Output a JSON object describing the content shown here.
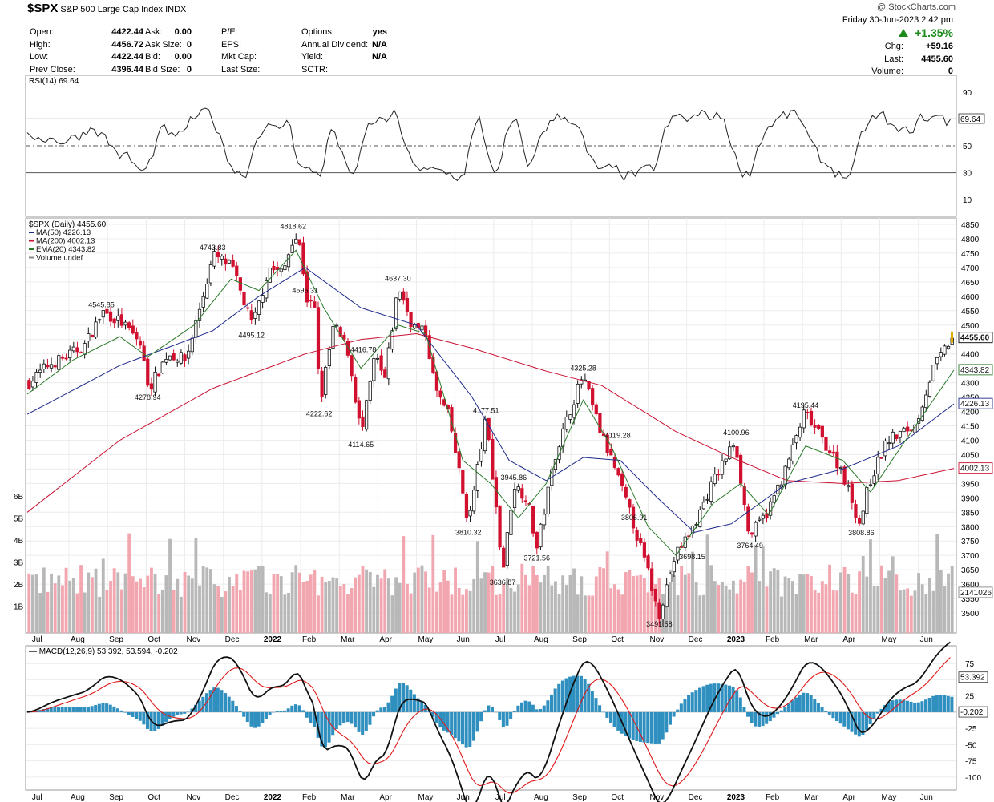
{
  "header": {
    "symbol": "$SPX",
    "name": "S&P 500 Large Cap Index",
    "exchange": "INDX",
    "copyright": "@ StockCharts.com",
    "date": "Friday  30-Jun-2023  2:42 pm",
    "change_pct": "+1.35%",
    "chg_label": "Chg:",
    "chg": "+59.16",
    "last_label": "Last:",
    "last": "4455.60",
    "volume_label": "Volume:",
    "volume": "0"
  },
  "quote": {
    "col1": [
      {
        "label": "Open:",
        "value": "4422.44"
      },
      {
        "label": "High:",
        "value": "4456.72"
      },
      {
        "label": "Low:",
        "value": "4422.44"
      },
      {
        "label": "Prev Close:",
        "value": "4396.44"
      }
    ],
    "col2": [
      {
        "label": "Ask:",
        "value": "0.00"
      },
      {
        "label": "Ask Size:",
        "value": "0"
      },
      {
        "label": "Bid:",
        "value": "0.00"
      },
      {
        "label": "Bid Size:",
        "value": "0"
      }
    ],
    "col3": [
      {
        "label": "P/E:",
        "value": ""
      },
      {
        "label": "EPS:",
        "value": ""
      },
      {
        "label": "Mkt Cap:",
        "value": ""
      },
      {
        "label": "Last Size:",
        "value": ""
      }
    ],
    "col4": [
      {
        "label": "Options:",
        "value": "yes"
      },
      {
        "label": "Annual Dividend:",
        "value": "N/A"
      },
      {
        "label": "Yield:",
        "value": "N/A"
      },
      {
        "label": "SCTR:",
        "value": ""
      }
    ]
  },
  "chart_data": [
    {
      "type": "line",
      "panel": "rsi",
      "title": "RSI(14) 69.64",
      "ylim": [
        0,
        100
      ],
      "ticks": [
        90,
        50,
        30,
        10
      ],
      "reference_lines": [
        70,
        50,
        30
      ],
      "last_value": "69.64"
    },
    {
      "type": "line",
      "panel": "price",
      "title": "$SPX (Daily) 4455.60",
      "legend": [
        {
          "name": "MA(50) 4226.13",
          "color": "#1f2a8c"
        },
        {
          "name": "MA(200) 4002.13",
          "color": "#cc1133"
        },
        {
          "name": "EMA(20) 4343.82",
          "color": "#2a7a2a"
        },
        {
          "name": "Volume undef",
          "color": "#888888"
        }
      ],
      "ylim": [
        3450,
        4850
      ],
      "ticks": [
        4850,
        4800,
        4750,
        4700,
        4650,
        4600,
        4550,
        4500,
        4450,
        4400,
        4350,
        4300,
        4250,
        4200,
        4150,
        4100,
        4050,
        4000,
        3950,
        3900,
        3850,
        3800,
        3750,
        3700,
        3650,
        3600,
        3550,
        3500
      ],
      "volume_ticks": [
        "6B",
        "5B",
        "4B",
        "3B",
        "2B",
        "1B"
      ],
      "x_labels": [
        "Jul",
        "Aug",
        "Sep",
        "Oct",
        "Nov",
        "Dec",
        "2022",
        "Feb",
        "Mar",
        "Apr",
        "May",
        "Jun",
        "Jul",
        "Aug",
        "Sep",
        "Oct",
        "Nov",
        "Dec",
        "2023",
        "Feb",
        "Mar",
        "Apr",
        "May",
        "Jun"
      ],
      "x_bold": [
        "2022",
        "2023"
      ],
      "annotations": [
        {
          "label": "4545.85",
          "t": 0.08,
          "y": 4545.85,
          "pos": "above"
        },
        {
          "label": "4278.94",
          "t": 0.13,
          "y": 4278.94,
          "pos": "below"
        },
        {
          "label": "4743.83",
          "t": 0.2,
          "y": 4743.83,
          "pos": "above"
        },
        {
          "label": "4495.12",
          "t": 0.242,
          "y": 4495.12,
          "pos": "below"
        },
        {
          "label": "4818.62",
          "t": 0.287,
          "y": 4818.62,
          "pos": "above"
        },
        {
          "label": "4595.31",
          "t": 0.3,
          "y": 4595.31,
          "pos": "above"
        },
        {
          "label": "4222.62",
          "t": 0.315,
          "y": 4222.62,
          "pos": "below"
        },
        {
          "label": "4416.78",
          "t": 0.345,
          "y": 4416.78,
          "pos": "right"
        },
        {
          "label": "4114.65",
          "t": 0.36,
          "y": 4114.65,
          "pos": "below"
        },
        {
          "label": "4637.30",
          "t": 0.4,
          "y": 4637.3,
          "pos": "above"
        },
        {
          "label": "4177.51",
          "t": 0.495,
          "y": 4177.51,
          "pos": "above"
        },
        {
          "label": "3810.32",
          "t": 0.476,
          "y": 3810.32,
          "pos": "below"
        },
        {
          "label": "3636.87",
          "t": 0.513,
          "y": 3636.87,
          "pos": "below"
        },
        {
          "label": "3945.86",
          "t": 0.525,
          "y": 3945.86,
          "pos": "above"
        },
        {
          "label": "3721.56",
          "t": 0.55,
          "y": 3721.56,
          "pos": "below"
        },
        {
          "label": "4325.28",
          "t": 0.6,
          "y": 4325.28,
          "pos": "above"
        },
        {
          "label": "4119.28",
          "t": 0.62,
          "y": 4119.28,
          "pos": "right"
        },
        {
          "label": "3806.91",
          "t": 0.655,
          "y": 3806.91,
          "pos": "above"
        },
        {
          "label": "3491.58",
          "t": 0.682,
          "y": 3491.58,
          "pos": "below"
        },
        {
          "label": "3698.15",
          "t": 0.7,
          "y": 3698.15,
          "pos": "right"
        },
        {
          "label": "4100.96",
          "t": 0.765,
          "y": 4100.96,
          "pos": "above"
        },
        {
          "label": "3764.49",
          "t": 0.78,
          "y": 3764.49,
          "pos": "below"
        },
        {
          "label": "4195.44",
          "t": 0.84,
          "y": 4195.44,
          "pos": "above"
        },
        {
          "label": "3808.86",
          "t": 0.9,
          "y": 3808.86,
          "pos": "below"
        }
      ],
      "right_labels": [
        {
          "label": "4455.60",
          "y": 4455.6,
          "color": "#000000"
        },
        {
          "label": "4343.82",
          "y": 4343.82,
          "color": "#2a7a2a"
        },
        {
          "label": "4226.13",
          "y": 4226.13,
          "color": "#1f2a8c"
        },
        {
          "label": "4002.13",
          "y": 4002.13,
          "color": "#cc1133"
        },
        {
          "label": "2141026",
          "y": 3570,
          "color": "#888888"
        }
      ],
      "price_path": [
        [
          0,
          4300
        ],
        [
          0.02,
          4360
        ],
        [
          0.04,
          4390
        ],
        [
          0.06,
          4430
        ],
        [
          0.08,
          4545.85
        ],
        [
          0.1,
          4510
        ],
        [
          0.12,
          4440
        ],
        [
          0.13,
          4278.94
        ],
        [
          0.15,
          4400
        ],
        [
          0.17,
          4380
        ],
        [
          0.19,
          4620
        ],
        [
          0.2,
          4743.83
        ],
        [
          0.22,
          4700
        ],
        [
          0.242,
          4495.12
        ],
        [
          0.26,
          4700
        ],
        [
          0.275,
          4680
        ],
        [
          0.287,
          4818.62
        ],
        [
          0.295,
          4760
        ],
        [
          0.3,
          4595.31
        ],
        [
          0.31,
          4550
        ],
        [
          0.315,
          4222.62
        ],
        [
          0.33,
          4500
        ],
        [
          0.345,
          4416.78
        ],
        [
          0.36,
          4114.65
        ],
        [
          0.375,
          4400
        ],
        [
          0.385,
          4300
        ],
        [
          0.4,
          4637.3
        ],
        [
          0.415,
          4500
        ],
        [
          0.43,
          4470
        ],
        [
          0.44,
          4280
        ],
        [
          0.455,
          4180
        ],
        [
          0.476,
          3810.32
        ],
        [
          0.495,
          4177.51
        ],
        [
          0.505,
          3900
        ],
        [
          0.513,
          3636.87
        ],
        [
          0.525,
          3945.86
        ],
        [
          0.54,
          3900
        ],
        [
          0.55,
          3721.56
        ],
        [
          0.57,
          4050
        ],
        [
          0.59,
          4240
        ],
        [
          0.6,
          4325.28
        ],
        [
          0.62,
          4119.28
        ],
        [
          0.635,
          4000
        ],
        [
          0.655,
          3806.91
        ],
        [
          0.67,
          3650
        ],
        [
          0.682,
          3491.58
        ],
        [
          0.7,
          3698.15
        ],
        [
          0.72,
          3800
        ],
        [
          0.74,
          3950
        ],
        [
          0.765,
          4100.96
        ],
        [
          0.78,
          3764.49
        ],
        [
          0.8,
          3850
        ],
        [
          0.82,
          4000
        ],
        [
          0.84,
          4195.44
        ],
        [
          0.86,
          4100
        ],
        [
          0.88,
          4000
        ],
        [
          0.9,
          3808.86
        ],
        [
          0.91,
          3950
        ],
        [
          0.93,
          4100
        ],
        [
          0.96,
          4150
        ],
        [
          0.98,
          4350
        ],
        [
          1.0,
          4455.6
        ]
      ],
      "ma50": [
        [
          0,
          4190
        ],
        [
          0.1,
          4360
        ],
        [
          0.2,
          4480
        ],
        [
          0.25,
          4600
        ],
        [
          0.3,
          4700
        ],
        [
          0.36,
          4560
        ],
        [
          0.42,
          4500
        ],
        [
          0.48,
          4250
        ],
        [
          0.52,
          4030
        ],
        [
          0.56,
          3960
        ],
        [
          0.6,
          4040
        ],
        [
          0.64,
          4030
        ],
        [
          0.68,
          3900
        ],
        [
          0.72,
          3780
        ],
        [
          0.76,
          3810
        ],
        [
          0.82,
          3950
        ],
        [
          0.88,
          4000
        ],
        [
          0.94,
          4080
        ],
        [
          1.0,
          4226.13
        ]
      ],
      "ma200": [
        [
          0,
          3850
        ],
        [
          0.1,
          4100
        ],
        [
          0.2,
          4280
        ],
        [
          0.3,
          4400
        ],
        [
          0.36,
          4450
        ],
        [
          0.42,
          4470
        ],
        [
          0.48,
          4420
        ],
        [
          0.56,
          4340
        ],
        [
          0.62,
          4290
        ],
        [
          0.7,
          4130
        ],
        [
          0.76,
          4040
        ],
        [
          0.82,
          3960
        ],
        [
          0.88,
          3950
        ],
        [
          0.94,
          3960
        ],
        [
          1.0,
          4002.13
        ]
      ],
      "ema20": [
        [
          0,
          4260
        ],
        [
          0.05,
          4380
        ],
        [
          0.1,
          4460
        ],
        [
          0.13,
          4390
        ],
        [
          0.18,
          4500
        ],
        [
          0.22,
          4660
        ],
        [
          0.25,
          4620
        ],
        [
          0.29,
          4760
        ],
        [
          0.32,
          4560
        ],
        [
          0.36,
          4350
        ],
        [
          0.4,
          4500
        ],
        [
          0.43,
          4470
        ],
        [
          0.47,
          4030
        ],
        [
          0.5,
          3950
        ],
        [
          0.53,
          3830
        ],
        [
          0.56,
          3950
        ],
        [
          0.6,
          4240
        ],
        [
          0.63,
          4080
        ],
        [
          0.67,
          3800
        ],
        [
          0.7,
          3700
        ],
        [
          0.74,
          3880
        ],
        [
          0.77,
          3950
        ],
        [
          0.8,
          3840
        ],
        [
          0.84,
          4080
        ],
        [
          0.88,
          4030
        ],
        [
          0.91,
          3920
        ],
        [
          0.95,
          4110
        ],
        [
          1.0,
          4343.82
        ]
      ]
    },
    {
      "type": "line",
      "panel": "macd",
      "title": "MACD(12,26,9) 53.392, 53.594, -0.202",
      "series_names": [
        "53.392",
        "53.594",
        "-0.202"
      ],
      "ylim": [
        -115,
        95
      ],
      "ticks": [
        75,
        50,
        25,
        0,
        -25,
        -50,
        -75,
        -100
      ],
      "right_labels": [
        "53.392",
        "-0.202"
      ]
    }
  ]
}
